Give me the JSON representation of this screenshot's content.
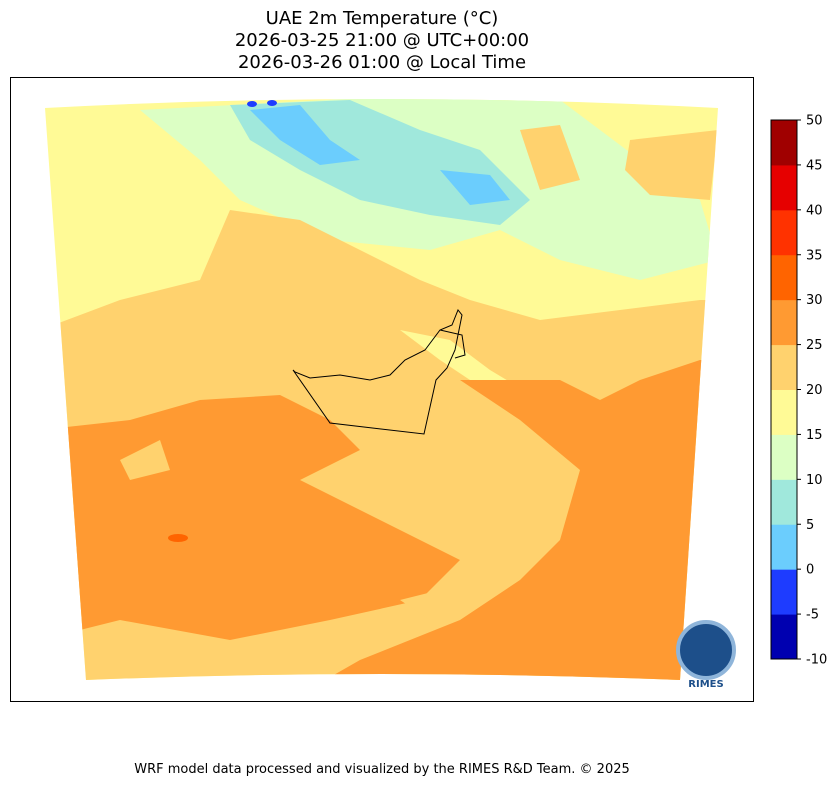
{
  "title": {
    "line1": "UAE 2m Temperature (°C)",
    "line2": "2026-03-25 21:00 @ UTC+00:00",
    "line3": "2026-03-26 01:00 @ Local Time"
  },
  "colorbar": {
    "bins": [
      {
        "from": -10,
        "to": -5,
        "color": "#0000b0"
      },
      {
        "from": -5,
        "to": 0,
        "color": "#1e3cff"
      },
      {
        "from": 0,
        "to": 5,
        "color": "#6bcdfd"
      },
      {
        "from": 5,
        "to": 10,
        "color": "#a0e8dc"
      },
      {
        "from": 10,
        "to": 15,
        "color": "#dcffc4"
      },
      {
        "from": 15,
        "to": 20,
        "color": "#fffa96"
      },
      {
        "from": 20,
        "to": 25,
        "color": "#ffd26e"
      },
      {
        "from": 25,
        "to": 30,
        "color": "#ff9a32"
      },
      {
        "from": 30,
        "to": 35,
        "color": "#ff6400"
      },
      {
        "from": 35,
        "to": 40,
        "color": "#ff3200"
      },
      {
        "from": 40,
        "to": 45,
        "color": "#e60000"
      },
      {
        "from": 45,
        "to": 50,
        "color": "#a00000"
      }
    ],
    "ticks": [
      "-10",
      "-5",
      "0",
      "5",
      "10",
      "15",
      "20",
      "25",
      "30",
      "35",
      "40",
      "45",
      "50"
    ]
  },
  "logo": {
    "text": "RIMES"
  },
  "footer": "WRF model data processed and visualized by the RIMES R&D Team. © 2025"
}
